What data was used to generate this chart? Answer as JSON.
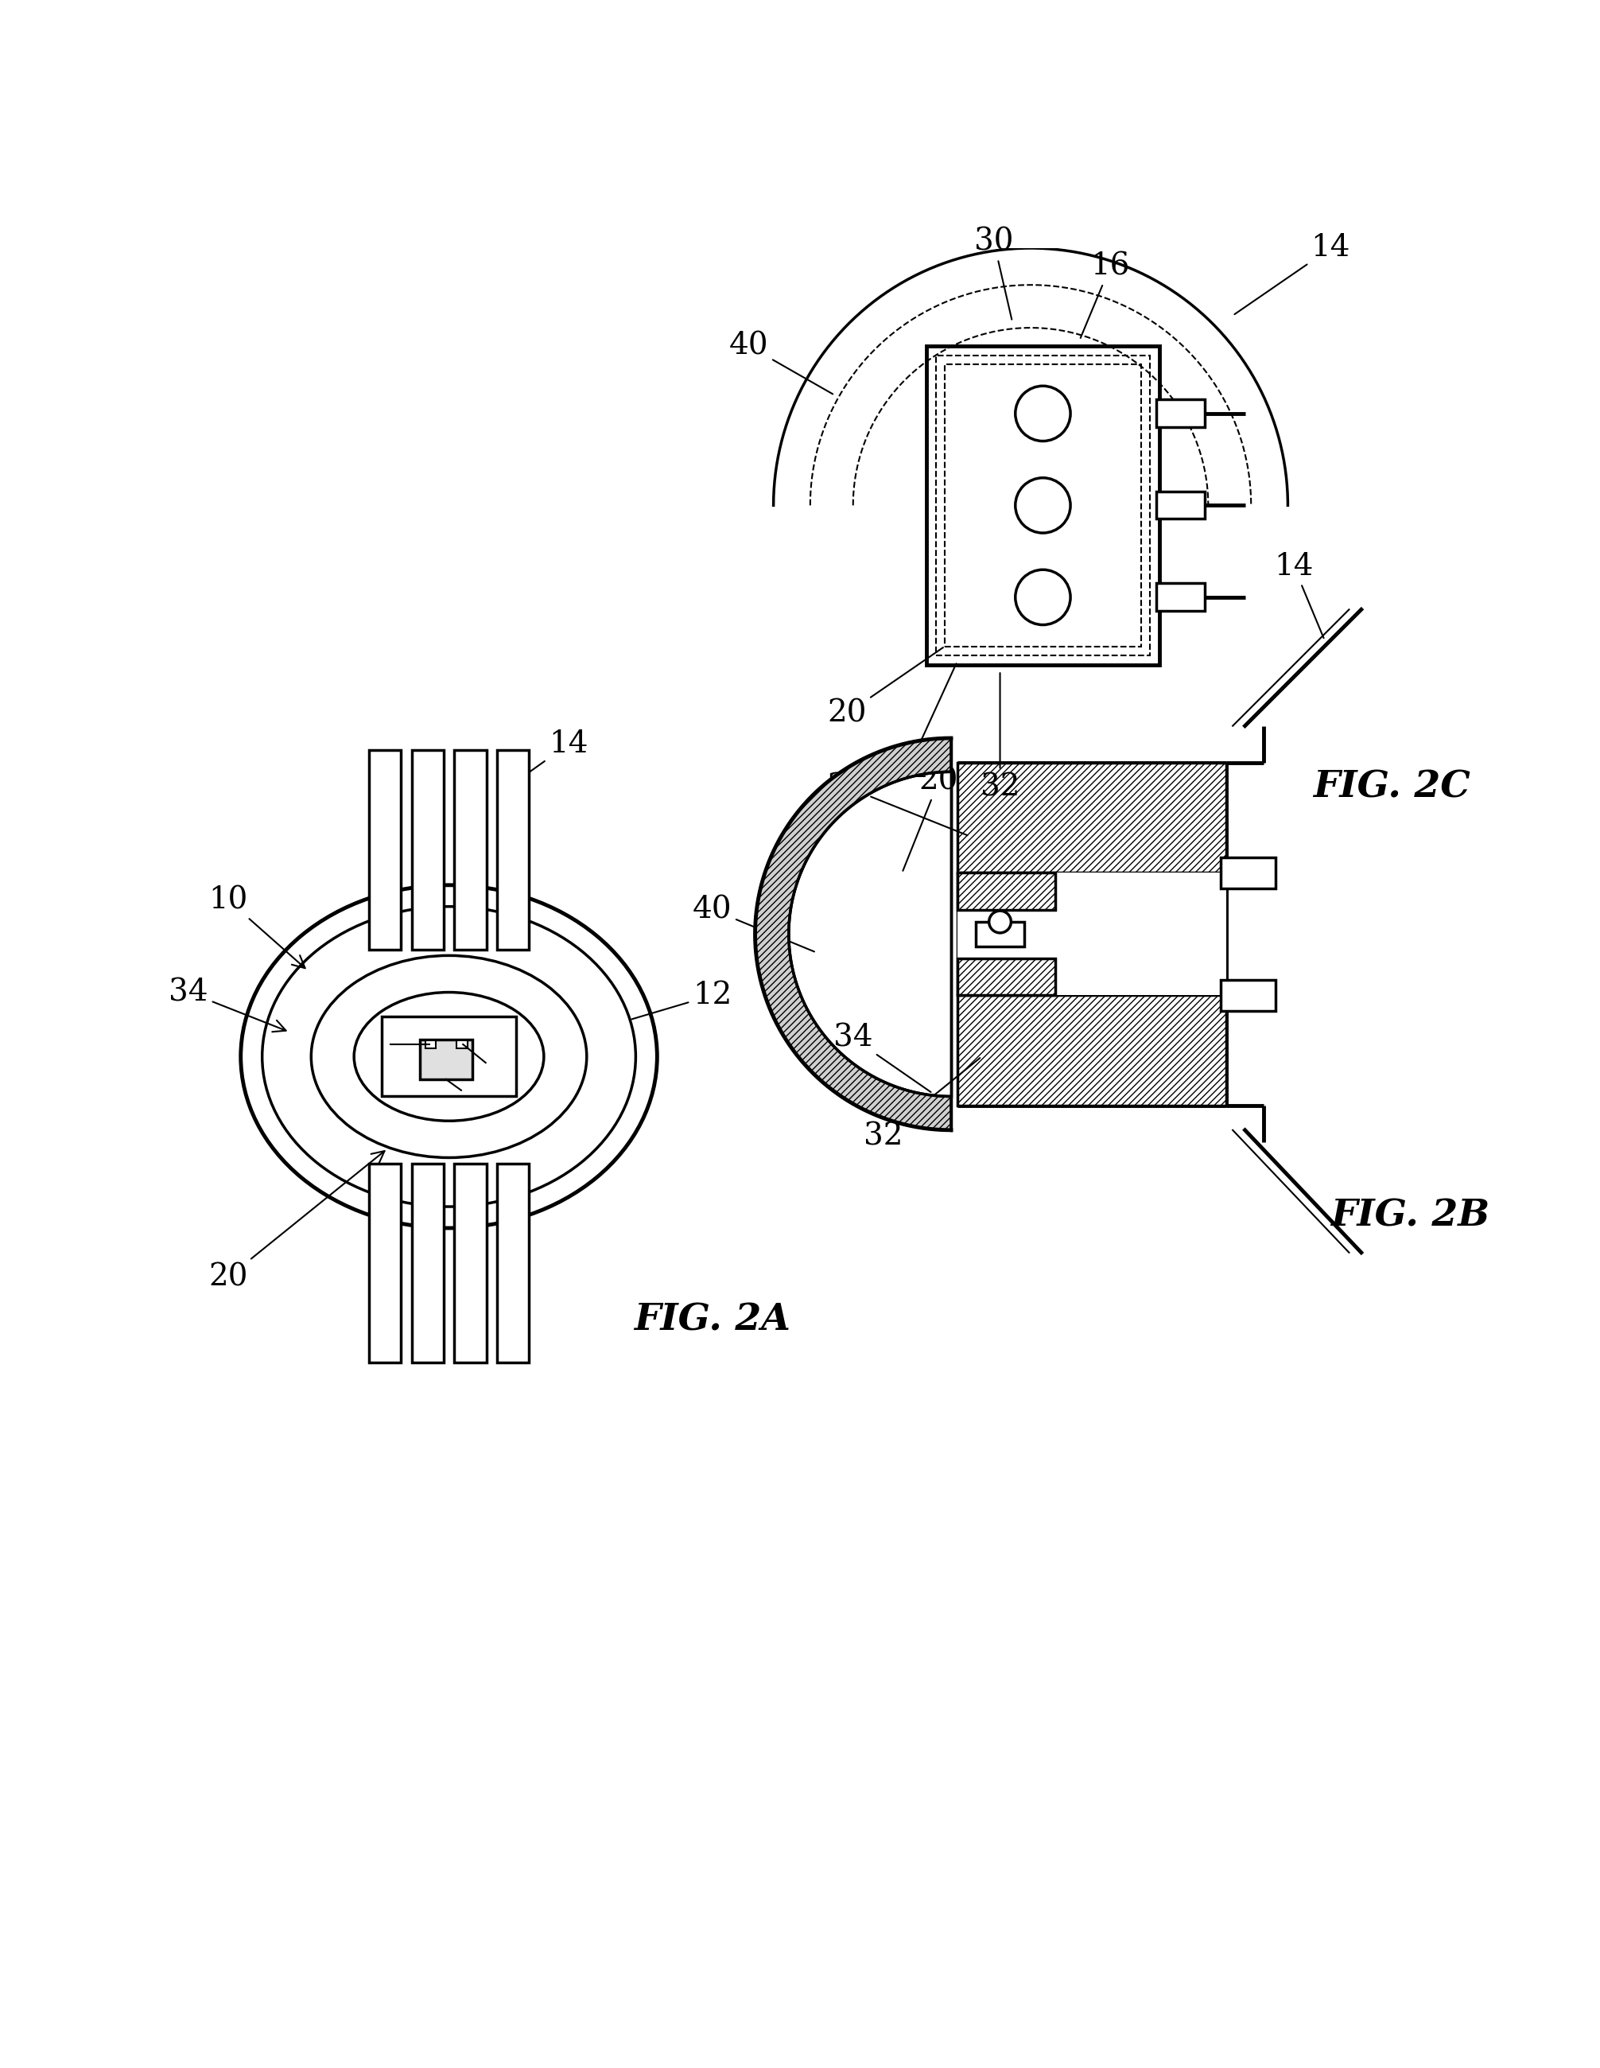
{
  "bg_color": "#ffffff",
  "line_color": "#000000",
  "fig_labels": {
    "2A": "FIG. 2A",
    "2B": "FIG. 2B",
    "2C": "FIG. 2C"
  },
  "lw": 2.5,
  "lw_thin": 1.5,
  "lw_thick": 3.5,
  "font_size_label": 28,
  "font_size_fig": 34
}
